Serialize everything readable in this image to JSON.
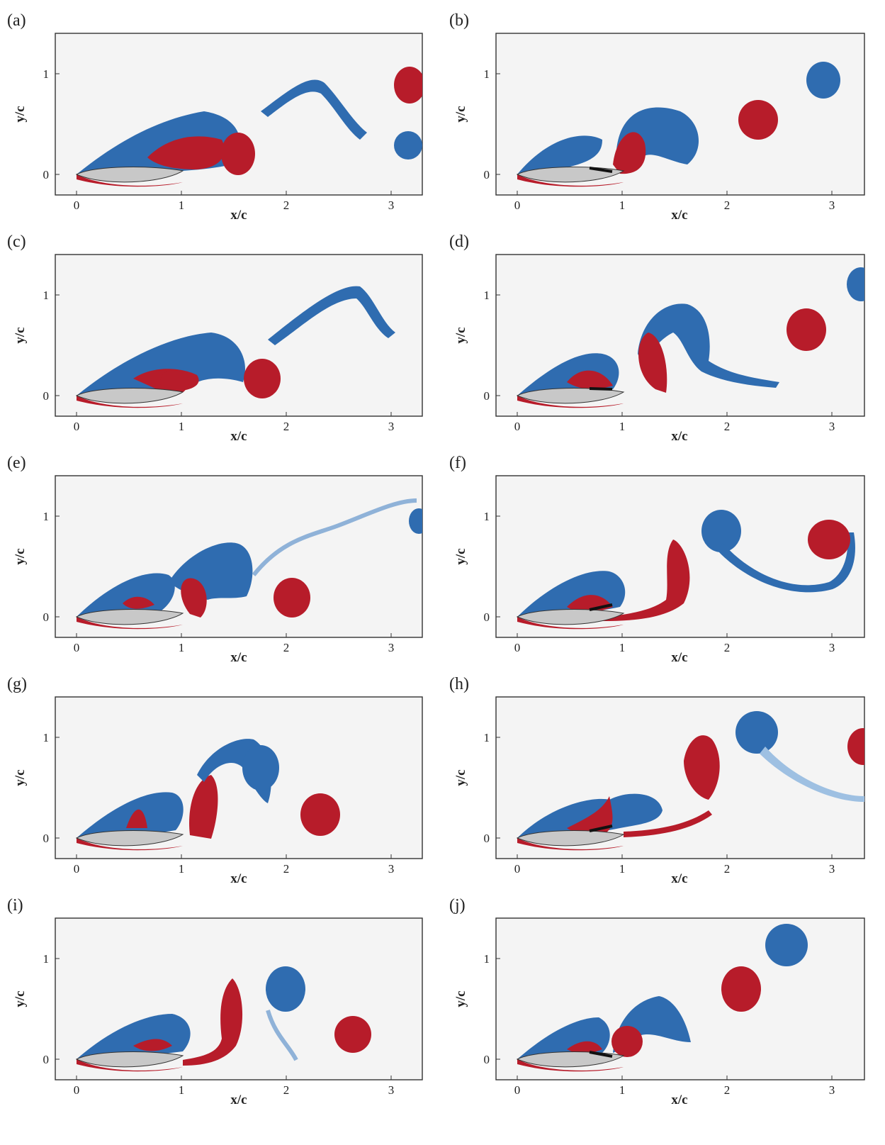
{
  "panels": [
    {
      "label": "(a)",
      "xlabel": "x/c",
      "ylabel": "y/c",
      "xticks": [
        "0",
        "1",
        "2",
        "3"
      ],
      "yticks": [
        "0",
        "1"
      ],
      "flap": false
    },
    {
      "label": "(b)",
      "xlabel": "x/c",
      "ylabel": "y/c",
      "xticks": [
        "0",
        "1",
        "2",
        "3"
      ],
      "yticks": [
        "0",
        "1"
      ],
      "flap": true
    },
    {
      "label": "(c)",
      "xlabel": "x/c",
      "ylabel": "y/c",
      "xticks": [
        "0",
        "1",
        "2",
        "3"
      ],
      "yticks": [
        "0",
        "1"
      ],
      "flap": false
    },
    {
      "label": "(d)",
      "xlabel": "x/c",
      "ylabel": "y/c",
      "xticks": [
        "0",
        "1",
        "2",
        "3"
      ],
      "yticks": [
        "0",
        "1"
      ],
      "flap": true
    },
    {
      "label": "(e)",
      "xlabel": "x/c",
      "ylabel": "y/c",
      "xticks": [
        "0",
        "1",
        "2",
        "3"
      ],
      "yticks": [
        "0",
        "1"
      ],
      "flap": false
    },
    {
      "label": "(f)",
      "xlabel": "x/c",
      "ylabel": "y/c",
      "xticks": [
        "0",
        "1",
        "2",
        "3"
      ],
      "yticks": [
        "0",
        "1"
      ],
      "flap": true
    },
    {
      "label": "(g)",
      "xlabel": "x/c",
      "ylabel": "y/c",
      "xticks": [
        "0",
        "1",
        "2",
        "3"
      ],
      "yticks": [
        "0",
        "1"
      ],
      "flap": false
    },
    {
      "label": "(h)",
      "xlabel": "x/c",
      "ylabel": "y/c",
      "xticks": [
        "0",
        "1",
        "2",
        "3"
      ],
      "yticks": [
        "0",
        "1"
      ],
      "flap": true
    },
    {
      "label": "(i)",
      "xlabel": "x/c",
      "ylabel": "y/c",
      "xticks": [
        "0",
        "1",
        "2",
        "3"
      ],
      "yticks": [
        "0",
        "1"
      ],
      "flap": false
    },
    {
      "label": "(j)",
      "xlabel": "x/c",
      "ylabel": "y/c",
      "xticks": [
        "0",
        "1",
        "2",
        "3"
      ],
      "yticks": [
        "0",
        "1"
      ],
      "flap": true
    }
  ],
  "colors": {
    "positive": "#b71c2a",
    "negative": "#2f6cb0",
    "airfoil": "#c8c8c8",
    "background": "#f4f4f4"
  }
}
